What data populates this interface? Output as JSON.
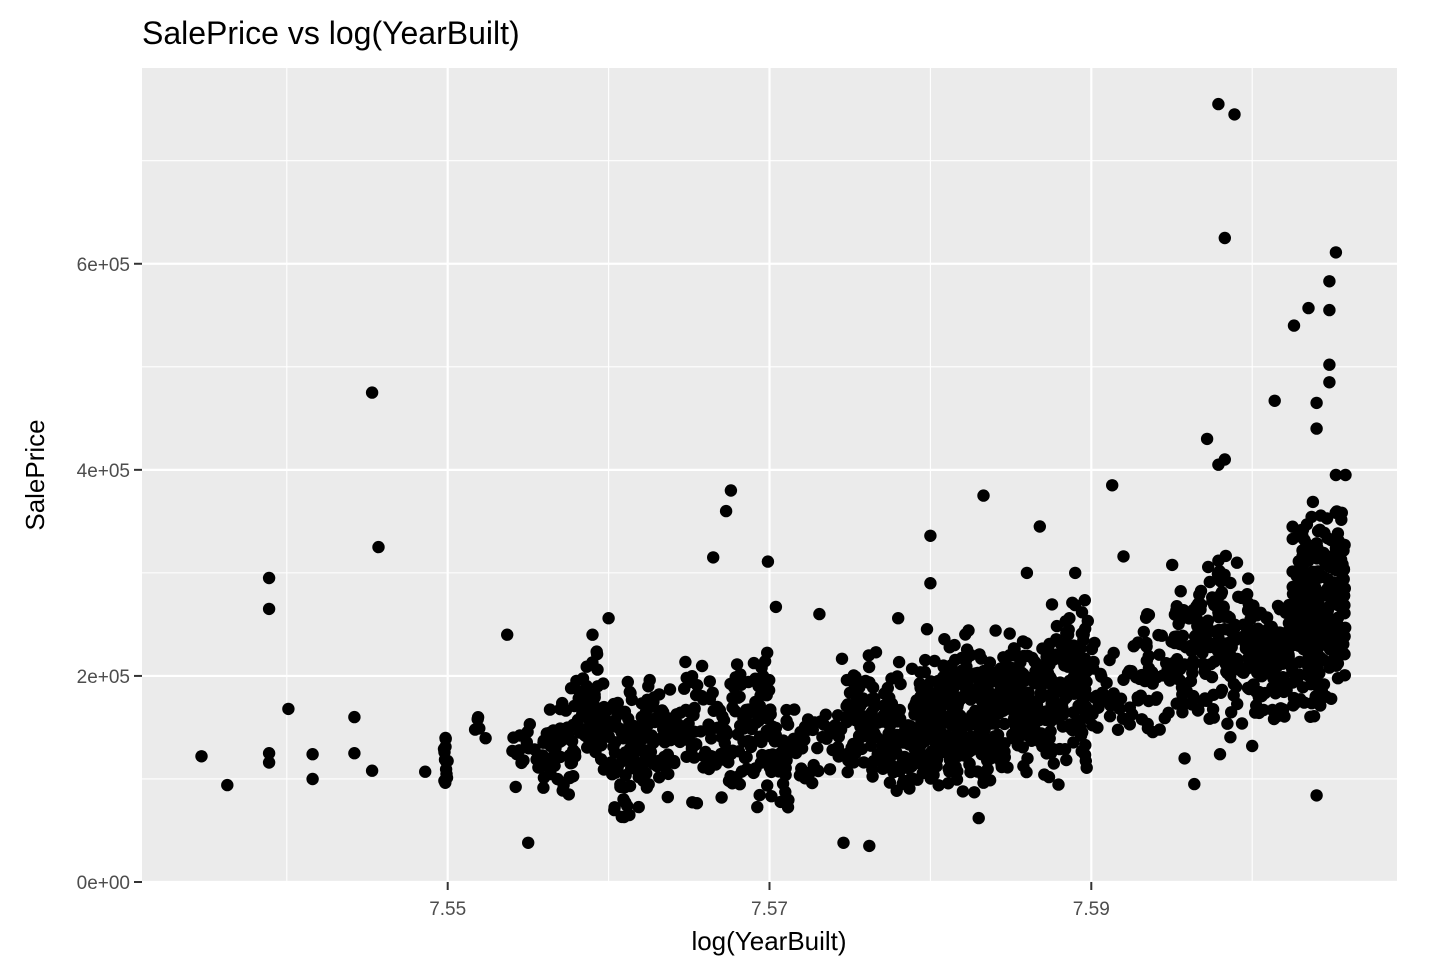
{
  "chart_data": {
    "type": "scatter",
    "title": "SalePrice vs log(YearBuilt)",
    "xlabel": "log(YearBuilt)",
    "ylabel": "SalePrice",
    "xlim": [
      7.531,
      7.609
    ],
    "ylim": [
      0,
      790000
    ],
    "x_ticks": [
      7.55,
      7.57,
      7.59
    ],
    "x_tick_labels": [
      "7.55",
      "7.57",
      "7.59"
    ],
    "x_minor_ticks": [
      7.54,
      7.56,
      7.58,
      7.6
    ],
    "y_ticks": [
      0,
      200000,
      400000,
      600000
    ],
    "y_tick_labels": [
      "0e+00",
      "2e+05",
      "4e+05",
      "6e+05"
    ],
    "y_minor_ticks": [
      100000,
      300000,
      500000,
      700000
    ],
    "grid": true,
    "legend": "none",
    "background": "#ebebeb",
    "point_color": "#000000",
    "outliers": [
      [
        7.5347,
        122000
      ],
      [
        7.5363,
        94000
      ],
      [
        7.5389,
        295000
      ],
      [
        7.5389,
        265000
      ],
      [
        7.5389,
        125000
      ],
      [
        7.5389,
        116000
      ],
      [
        7.5401,
        168000
      ],
      [
        7.5416,
        124000
      ],
      [
        7.5416,
        100000
      ],
      [
        7.5442,
        160000
      ],
      [
        7.5442,
        125000
      ],
      [
        7.5453,
        475000
      ],
      [
        7.5453,
        108000
      ],
      [
        7.5457,
        325000
      ],
      [
        7.5486,
        107000
      ],
      [
        7.5537,
        240000
      ],
      [
        7.555,
        38000
      ],
      [
        7.5676,
        380000
      ],
      [
        7.5665,
        315000
      ],
      [
        7.5673,
        360000
      ],
      [
        7.5699,
        311000
      ],
      [
        7.5704,
        267000
      ],
      [
        7.5731,
        260000
      ],
      [
        7.5746,
        38000
      ],
      [
        7.5762,
        35000
      ],
      [
        7.58,
        336000
      ],
      [
        7.58,
        290000
      ],
      [
        7.5833,
        375000
      ],
      [
        7.583,
        62000
      ],
      [
        7.5868,
        345000
      ],
      [
        7.5913,
        385000
      ],
      [
        7.592,
        316000
      ],
      [
        7.5972,
        430000
      ],
      [
        7.5979,
        755000
      ],
      [
        7.5989,
        745000
      ],
      [
        7.5983,
        625000
      ],
      [
        7.5979,
        405000
      ],
      [
        7.5983,
        410000
      ],
      [
        7.6014,
        467000
      ],
      [
        7.6026,
        540000
      ],
      [
        7.6035,
        557000
      ],
      [
        7.604,
        465000
      ],
      [
        7.604,
        440000
      ],
      [
        7.6048,
        583000
      ],
      [
        7.6048,
        555000
      ],
      [
        7.6048,
        502000
      ],
      [
        7.6048,
        485000
      ],
      [
        7.6052,
        611000
      ],
      [
        7.6052,
        395000
      ],
      [
        7.6058,
        395000
      ],
      [
        7.604,
        84000
      ],
      [
        7.5964,
        95000
      ],
      [
        7.5958,
        120000
      ],
      [
        7.598,
        124000
      ],
      [
        7.6,
        132000
      ],
      [
        7.586,
        300000
      ],
      [
        7.589,
        300000
      ],
      [
        7.578,
        256000
      ],
      [
        7.56,
        256000
      ],
      [
        7.559,
        240000
      ]
    ],
    "clusters": [
      {
        "x": [
          7.5497,
          7.55
        ],
        "ymin": 78000,
        "ymax": 160000,
        "n": 14
      },
      {
        "x": [
          7.5515,
          7.5525
        ],
        "ymin": 130000,
        "ymax": 165000,
        "n": 5
      },
      {
        "x": [
          7.554,
          7.5562
        ],
        "ymin": 80000,
        "ymax": 170000,
        "n": 28
      },
      {
        "x": [
          7.5562,
          7.558
        ],
        "ymin": 60000,
        "ymax": 210000,
        "n": 45
      },
      {
        "x": [
          7.558,
          7.56
        ],
        "ymin": 90000,
        "ymax": 240000,
        "n": 55
      },
      {
        "x": [
          7.56,
          7.5625
        ],
        "ymin": 35000,
        "ymax": 230000,
        "n": 90
      },
      {
        "x": [
          7.5625,
          7.565
        ],
        "ymin": 60000,
        "ymax": 230000,
        "n": 70
      },
      {
        "x": [
          7.565,
          7.5675
        ],
        "ymin": 55000,
        "ymax": 240000,
        "n": 55
      },
      {
        "x": [
          7.5675,
          7.57
        ],
        "ymin": 55000,
        "ymax": 250000,
        "n": 70
      },
      {
        "x": [
          7.57,
          7.5712
        ],
        "ymin": 55000,
        "ymax": 200000,
        "n": 40
      },
      {
        "x": [
          7.5715,
          7.5745
        ],
        "ymin": 75000,
        "ymax": 200000,
        "n": 40
      },
      {
        "x": [
          7.5745,
          7.577
        ],
        "ymin": 70000,
        "ymax": 245000,
        "n": 65
      },
      {
        "x": [
          7.577,
          7.5795
        ],
        "ymin": 60000,
        "ymax": 230000,
        "n": 110
      },
      {
        "x": [
          7.5795,
          7.582
        ],
        "ymin": 60000,
        "ymax": 250000,
        "n": 160
      },
      {
        "x": [
          7.582,
          7.585
        ],
        "ymin": 65000,
        "ymax": 260000,
        "n": 150
      },
      {
        "x": [
          7.585,
          7.5875
        ],
        "ymin": 72000,
        "ymax": 270000,
        "n": 130
      },
      {
        "x": [
          7.5875,
          7.59
        ],
        "ymin": 80000,
        "ymax": 290000,
        "n": 120
      },
      {
        "x": [
          7.59,
          7.5925
        ],
        "ymin": 110000,
        "ymax": 250000,
        "n": 40
      },
      {
        "x": [
          7.5925,
          7.595
        ],
        "ymin": 110000,
        "ymax": 280000,
        "n": 45
      },
      {
        "x": [
          7.595,
          7.5975
        ],
        "ymin": 120000,
        "ymax": 335000,
        "n": 80
      },
      {
        "x": [
          7.5975,
          7.6
        ],
        "ymin": 125000,
        "ymax": 350000,
        "n": 100
      },
      {
        "x": [
          7.6,
          7.6025
        ],
        "ymin": 130000,
        "ymax": 300000,
        "n": 110
      },
      {
        "x": [
          7.6025,
          7.6045
        ],
        "ymin": 130000,
        "ymax": 390000,
        "n": 200
      },
      {
        "x": [
          7.6045,
          7.6058
        ],
        "ymin": 150000,
        "ymax": 400000,
        "n": 100
      }
    ]
  }
}
